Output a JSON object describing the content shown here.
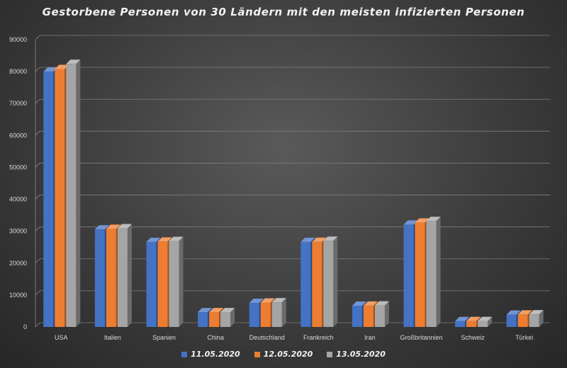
{
  "chart_data": {
    "type": "bar",
    "title": "Gestorbene Personen von 30 Ländern mit den meisten infizierten Personen",
    "categories": [
      "USA",
      "Italien",
      "Spanien",
      "China",
      "Deutschland",
      "Frankreich",
      "Iran",
      "Großbritannien",
      "Schweiz",
      "Türkei"
    ],
    "series": [
      {
        "name": "11.05.2020",
        "color": "#4472c4",
        "values": [
          80000,
          30560,
          26620,
          4633,
          7550,
          26640,
          6640,
          32065,
          1830,
          3841
        ]
      },
      {
        "name": "12.05.2020",
        "color": "#ed7d31",
        "values": [
          80800,
          30740,
          26744,
          4633,
          7650,
          26650,
          6685,
          32692,
          1845,
          3894
        ]
      },
      {
        "name": "13.05.2020",
        "color": "#a5a5a5",
        "values": [
          82400,
          30910,
          26920,
          4633,
          7720,
          26990,
          6733,
          33186,
          1867,
          3952
        ]
      }
    ],
    "yticks": [
      "0",
      "10000",
      "20000",
      "30000",
      "40000",
      "50000",
      "60000",
      "70000",
      "80000",
      "90000"
    ],
    "ylim": [
      0,
      90000
    ],
    "grid": true,
    "legend_position": "bottom"
  }
}
